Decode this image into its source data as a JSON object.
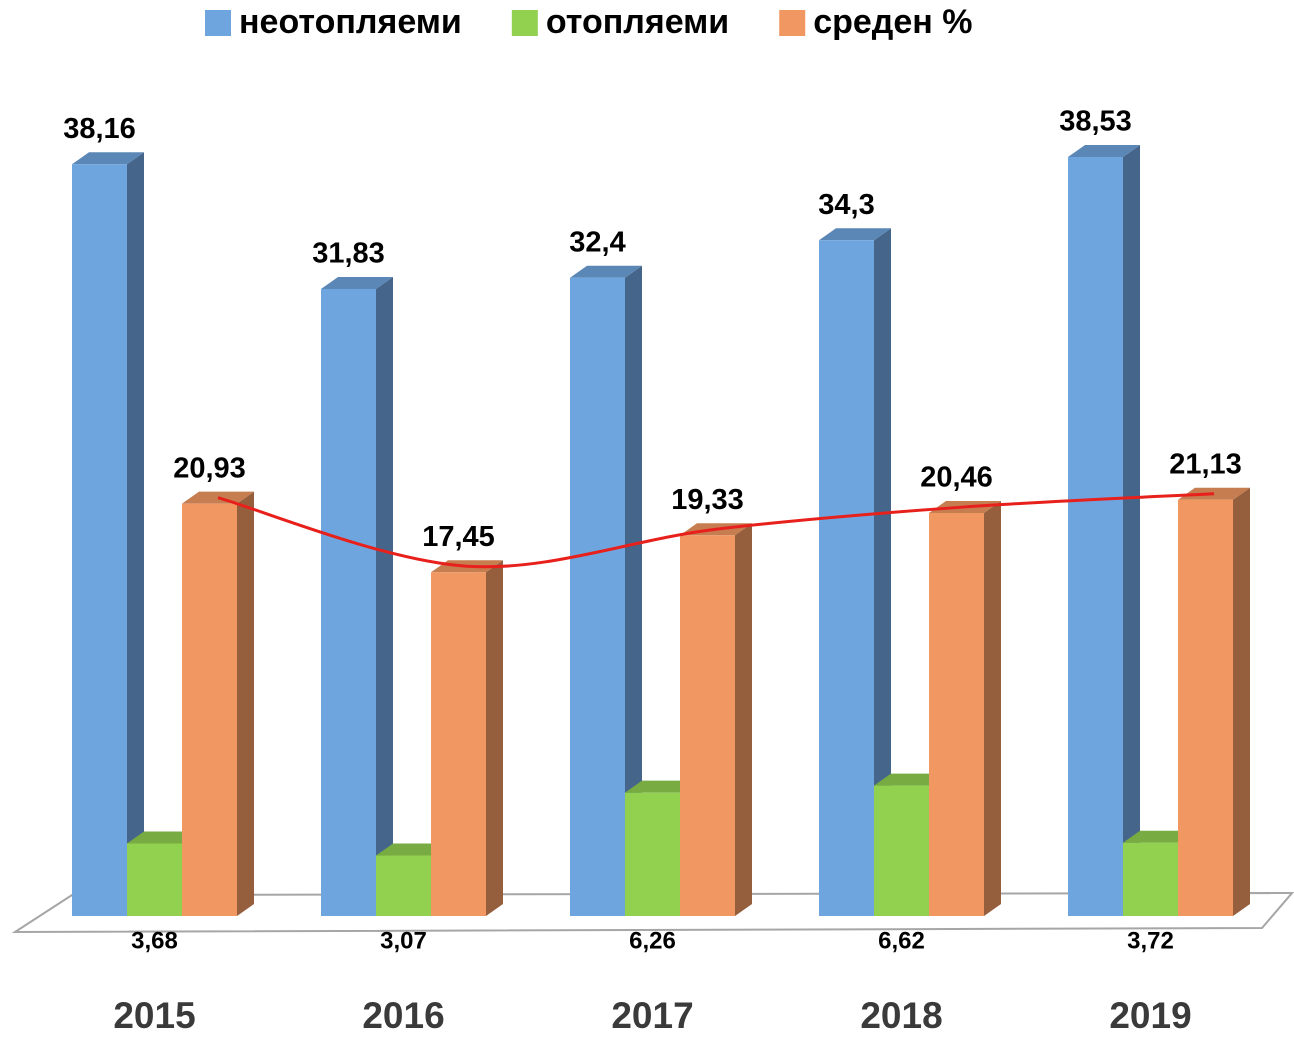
{
  "chart_data": {
    "type": "bar3d",
    "categories": [
      "2015",
      "2016",
      "2017",
      "2018",
      "2019"
    ],
    "series": [
      {
        "name": "неотопляеми",
        "color": "#6fa5de",
        "values": [
          38.16,
          31.83,
          32.4,
          34.3,
          38.53
        ],
        "value_labels": [
          "38,16",
          "31,83",
          "32,4",
          "34,3",
          "38,53"
        ]
      },
      {
        "name": "отопляеми",
        "color": "#92d050",
        "values": [
          3.68,
          3.07,
          6.26,
          6.62,
          3.72
        ],
        "value_labels": [
          "3,68",
          "3,07",
          "6,26",
          "6,62",
          "3,72"
        ]
      },
      {
        "name": "среден %",
        "color": "#f19862",
        "values": [
          20.93,
          17.45,
          19.33,
          20.46,
          21.13
        ],
        "value_labels": [
          "20,93",
          "17,45",
          "19,33",
          "20,46",
          "21,13"
        ]
      }
    ],
    "trend_line_color": "#e8201c",
    "legend": "top"
  }
}
